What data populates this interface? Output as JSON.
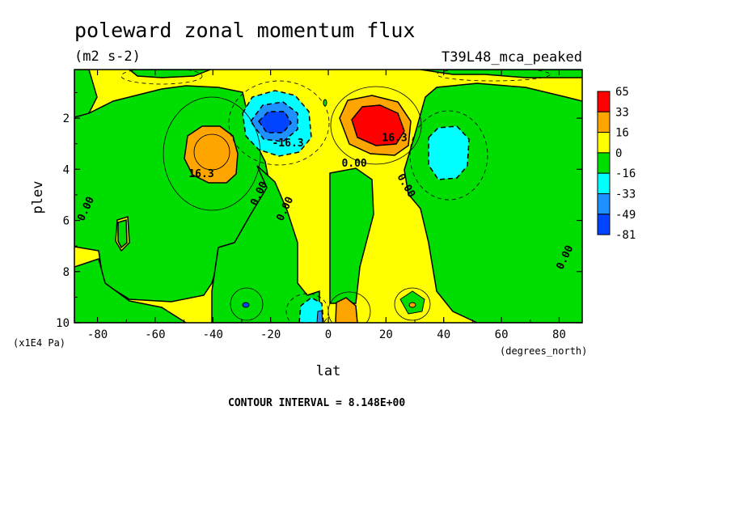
{
  "chart_data": {
    "type": "heatmap",
    "subtype": "filled-contour",
    "title": "poleward zonal momentum flux",
    "subtitle": "(m2 s-2)",
    "run_label": "T39L48_mca_peaked",
    "xlabel": "lat",
    "x_units": "(degrees_north)",
    "ylabel": "plev",
    "y_units": "(x1E4 Pa)",
    "xlim": [
      -88,
      88
    ],
    "ylim": [
      10,
      0.1
    ],
    "y_inverted": true,
    "x_ticks": [
      -80,
      -60,
      -40,
      -20,
      0,
      20,
      40,
      60,
      80
    ],
    "y_ticks": [
      2,
      4,
      6,
      8,
      10
    ],
    "contour_interval_note": "CONTOUR INTERVAL = 8.148E+00",
    "legend": {
      "placement": "right",
      "levels": [
        "65",
        "33",
        "16",
        "0",
        "-16",
        "-33",
        "-49",
        "-81"
      ],
      "colors": [
        "#ff0000",
        "#ffa500",
        "#ffff00",
        "#00dd00",
        "#00ffff",
        "#1e90ff",
        "#0044ff"
      ]
    },
    "contour_labels": [
      {
        "text": "16.3",
        "lat": -44,
        "plev": 4.3
      },
      {
        "text": "-16.3",
        "lat": -14,
        "plev": 3.1
      },
      {
        "text": "16.3",
        "lat": 23,
        "plev": 2.9
      },
      {
        "text": "0.00",
        "lat": -83,
        "plev": 5.6
      },
      {
        "text": "0.00",
        "lat": -23,
        "plev": 5.0
      },
      {
        "text": "0.00",
        "lat": -14,
        "plev": 5.6
      },
      {
        "text": "0.00",
        "lat": 9,
        "plev": 3.9
      },
      {
        "text": "0.00",
        "lat": 26,
        "plev": 4.7
      },
      {
        "text": "0.00",
        "lat": 83,
        "plev": 7.5
      }
    ],
    "features": [
      {
        "sign": "positive",
        "peak_band": "16 to 33",
        "lat": -42,
        "plev": 3.2
      },
      {
        "sign": "negative",
        "peak_band": "-49 to -33",
        "lat": -18,
        "plev": 2.4
      },
      {
        "sign": "positive",
        "peak_band": "33 to 65",
        "lat": 18,
        "plev": 2.3
      },
      {
        "sign": "negative",
        "peak_band": "-33 to -16",
        "lat": 42,
        "plev": 3.5
      },
      {
        "sign": "negative",
        "peak_band": "-33 to -16",
        "lat": -6,
        "plev": 9.5
      },
      {
        "sign": "positive",
        "peak_band": "16 to 33",
        "lat": 6,
        "plev": 9.5
      }
    ]
  }
}
